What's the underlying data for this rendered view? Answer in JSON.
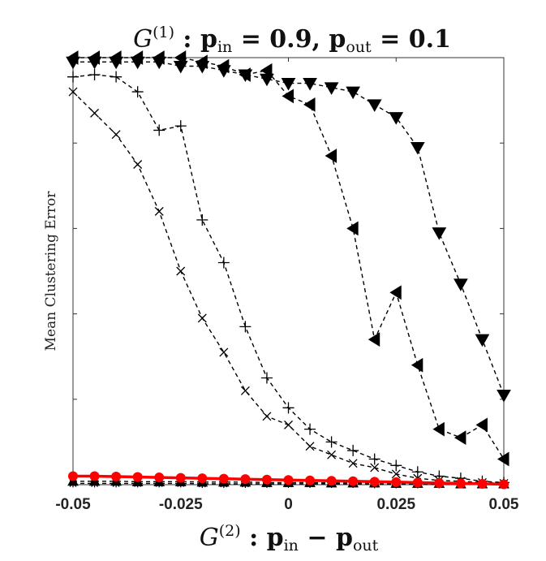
{
  "chart_data": {
    "type": "line",
    "title": "G(1) : pin = 0.9,  pout = 0.1",
    "title_parts": {
      "var": "G",
      "sup": "(1)",
      "sep": " : ",
      "p1": "p",
      "s1": "in",
      "eq1": " = 0.9,  ",
      "p2": "p",
      "s2": "out",
      "eq2": " = 0.1"
    },
    "xlabel": "G(2) : pin − pout",
    "xlabel_parts": {
      "var": "G",
      "sup": "(2)",
      "sep": " : ",
      "p1": "p",
      "s1": "in",
      "minus": " − ",
      "p2": "p",
      "s2": "out"
    },
    "ylabel": "Mean Clustering Error",
    "xlim": [
      -0.05,
      0.05
    ],
    "ylim": [
      0,
      1
    ],
    "x_ticks": [
      -0.05,
      -0.025,
      0,
      0.025,
      0.05
    ],
    "x_tick_labels": [
      "-0.05",
      "-0.025",
      "0",
      "0.025",
      "0.05"
    ],
    "y_ticks": [
      0,
      0.2,
      0.4,
      0.6,
      0.8,
      1.0
    ],
    "x": [
      -0.05,
      -0.045,
      -0.04,
      -0.035,
      -0.03,
      -0.025,
      -0.02,
      -0.015,
      -0.01,
      -0.005,
      0,
      0.005,
      0.01,
      0.015,
      0.02,
      0.025,
      0.03,
      0.035,
      0.04,
      0.045,
      0.05
    ],
    "series": [
      {
        "name": "series-plus",
        "marker": "plus",
        "style": "dashed",
        "color": "#000000",
        "values": [
          0.955,
          0.96,
          0.955,
          0.92,
          0.83,
          0.84,
          0.62,
          0.52,
          0.37,
          0.25,
          0.18,
          0.13,
          0.1,
          0.08,
          0.06,
          0.045,
          0.03,
          0.02,
          0.015,
          0.008,
          0.005
        ]
      },
      {
        "name": "series-cross",
        "marker": "x",
        "style": "dashed",
        "color": "#000000",
        "values": [
          0.92,
          0.87,
          0.82,
          0.75,
          0.64,
          0.5,
          0.39,
          0.31,
          0.22,
          0.16,
          0.14,
          0.09,
          0.07,
          0.05,
          0.04,
          0.025,
          0.015,
          0.01,
          0.008,
          0.005,
          0.003
        ]
      },
      {
        "name": "series-triangle-left",
        "marker": "triangle-left",
        "style": "dashed",
        "color": "#000000",
        "values": [
          1.0,
          1.0,
          1.0,
          1.0,
          1.0,
          1.0,
          0.99,
          0.98,
          0.96,
          0.97,
          0.91,
          0.89,
          0.77,
          0.6,
          0.34,
          0.45,
          0.28,
          0.13,
          0.11,
          0.14,
          0.06
        ]
      },
      {
        "name": "series-triangle-down",
        "marker": "triangle-down",
        "style": "dashed",
        "color": "#000000",
        "values": [
          0.99,
          0.99,
          0.99,
          0.99,
          0.99,
          0.98,
          0.98,
          0.97,
          0.96,
          0.95,
          0.94,
          0.94,
          0.93,
          0.92,
          0.89,
          0.86,
          0.79,
          0.59,
          0.47,
          0.34,
          0.21
        ]
      },
      {
        "name": "series-red-circle",
        "marker": "circle",
        "style": "solid",
        "color": "#ff0000",
        "values": [
          0.02,
          0.02,
          0.019,
          0.018,
          0.017,
          0.016,
          0.015,
          0.014,
          0.013,
          0.012,
          0.011,
          0.01,
          0.009,
          0.008,
          0.007,
          0.006,
          0.005,
          0.004,
          0.003,
          0.002,
          0.001
        ]
      },
      {
        "name": "series-baseline-a",
        "marker": "asterisk",
        "style": "dashed",
        "color": "#000000",
        "values": [
          0.003,
          0.003,
          0.003,
          0.003,
          0.003,
          0.003,
          0.002,
          0.002,
          0.002,
          0.002,
          0.002,
          0.002,
          0.002,
          0.002,
          0.001,
          0.001,
          0.001,
          0.001,
          0.001,
          0.001,
          0.001
        ]
      },
      {
        "name": "series-baseline-b",
        "marker": "triangle-up",
        "style": "dashed",
        "color": "#000000",
        "values": [
          0.008,
          0.008,
          0.008,
          0.007,
          0.007,
          0.007,
          0.006,
          0.006,
          0.006,
          0.005,
          0.005,
          0.005,
          0.004,
          0.004,
          0.004,
          0.003,
          0.003,
          0.003,
          0.002,
          0.002,
          0.002
        ]
      }
    ]
  }
}
